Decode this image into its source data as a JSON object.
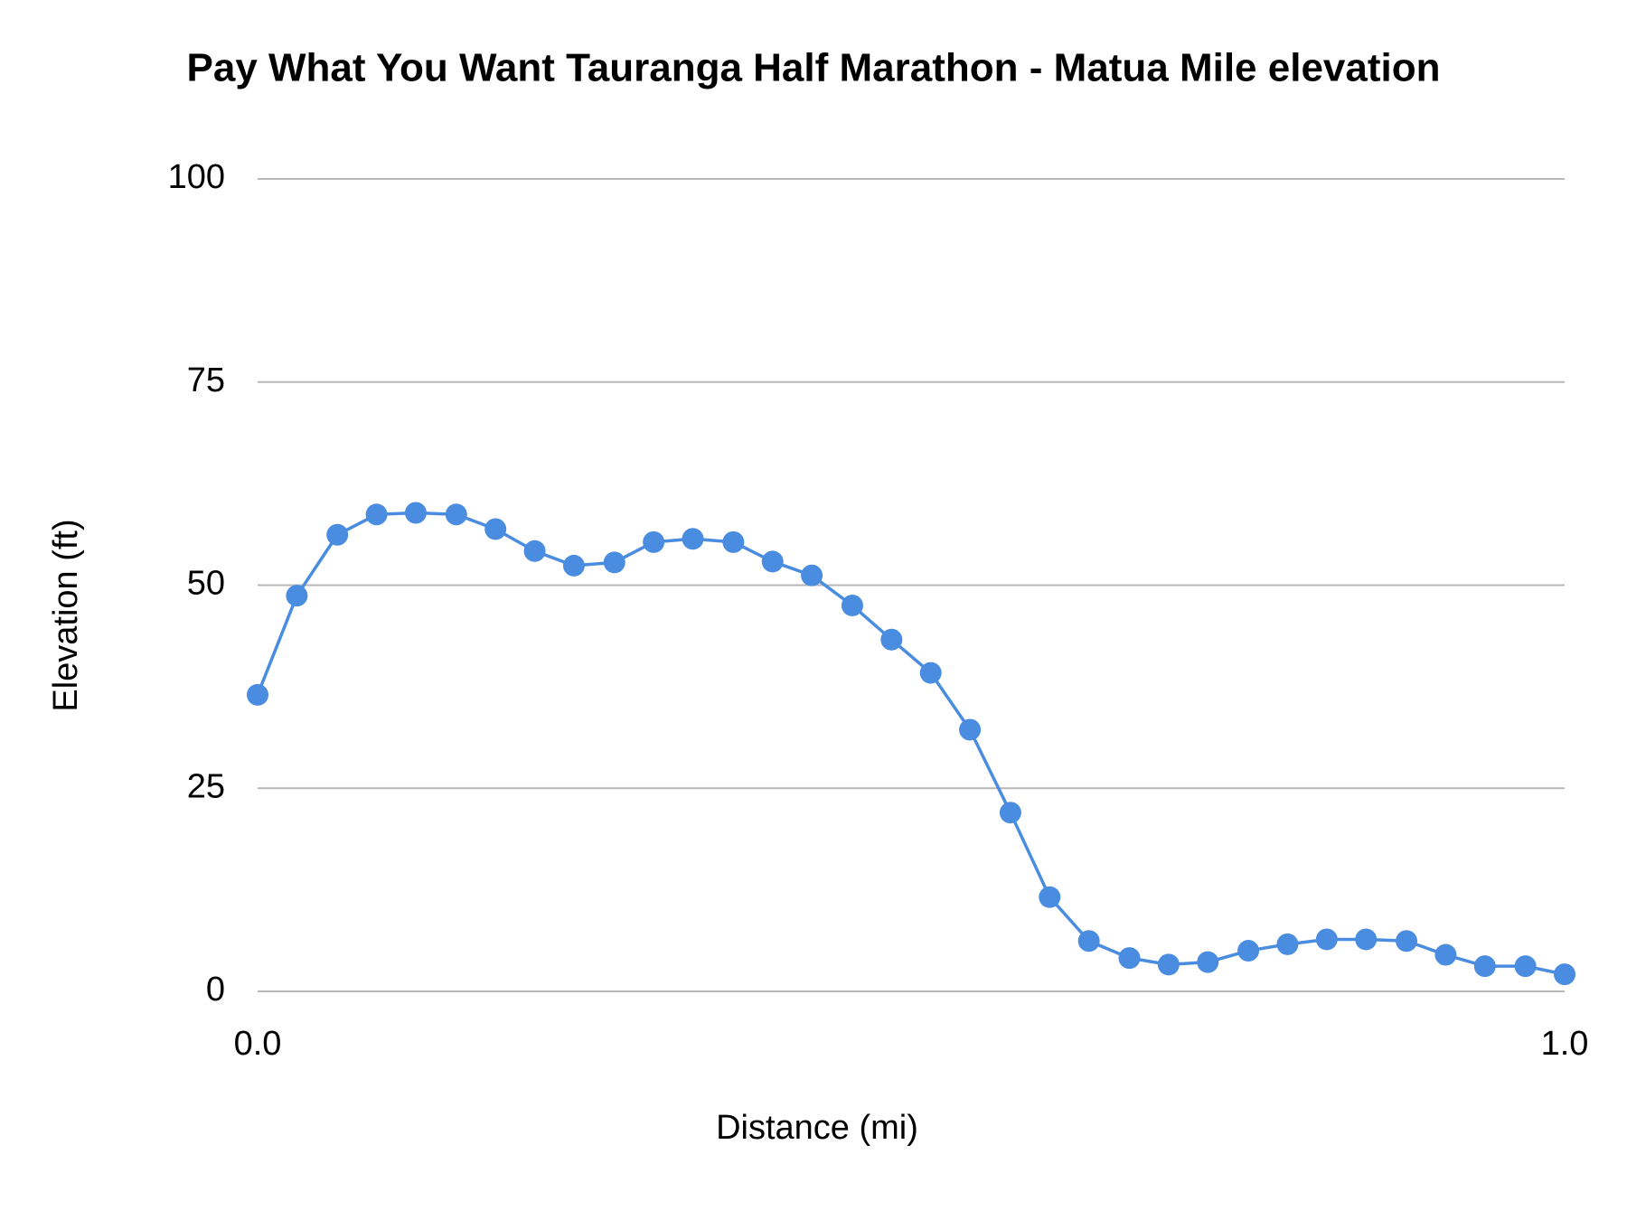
{
  "chart_data": {
    "type": "line",
    "title": "Pay What You Want Tauranga Half Marathon - Matua Mile elevation",
    "x_label": "Distance (mi)",
    "y_label": "Elevation (ft)",
    "x": [
      0,
      0.03,
      0.061,
      0.091,
      0.121,
      0.152,
      0.182,
      0.212,
      0.242,
      0.273,
      0.303,
      0.333,
      0.364,
      0.394,
      0.424,
      0.455,
      0.485,
      0.515,
      0.545,
      0.576,
      0.606,
      0.636,
      0.667,
      0.697,
      0.727,
      0.758,
      0.788,
      0.818,
      0.848,
      0.879,
      0.909,
      0.939,
      0.97,
      1
    ],
    "series": [
      {
        "name": "Elevation",
        "color": "#4a8de0",
        "values": [
          36.5,
          48.7,
          56.2,
          58.7,
          58.9,
          58.7,
          56.9,
          54.2,
          52.4,
          52.8,
          55.3,
          55.7,
          55.3,
          52.9,
          51.2,
          47.5,
          43.3,
          39.2,
          32.2,
          22.0,
          11.6,
          6.2,
          4.1,
          3.3,
          3.6,
          5.0,
          5.8,
          6.4,
          6.4,
          6.2,
          4.5,
          3.1,
          3.1,
          2.1
        ]
      }
    ],
    "xlim": [
      0,
      1
    ],
    "xticks": [
      {
        "value": 0,
        "label": "0.0"
      },
      {
        "value": 1,
        "label": "1.0"
      }
    ],
    "ylim": [
      0,
      100
    ],
    "yticks": [
      0,
      25,
      50,
      75,
      100
    ],
    "grid": true,
    "markers": true
  }
}
